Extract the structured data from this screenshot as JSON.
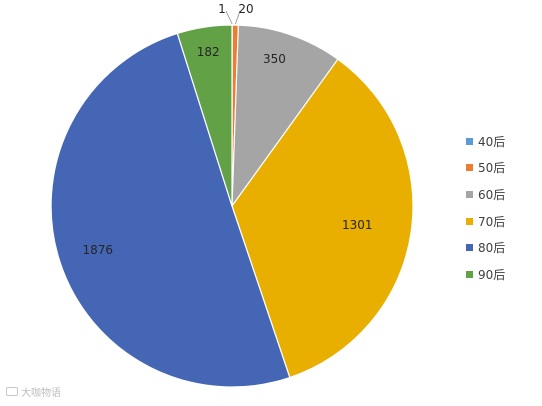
{
  "chart_data": {
    "type": "pie",
    "categories": [
      "40后",
      "50后",
      "60后",
      "70后",
      "80后",
      "90后"
    ],
    "values": [
      1,
      20,
      350,
      1301,
      1876,
      182
    ],
    "data_labels": [
      "1",
      "20",
      "350",
      "1301",
      "1876",
      "182"
    ],
    "colors": [
      "#5B9BD5",
      "#ED7D31",
      "#A5A5A5",
      "#E8AE00",
      "#4466B4",
      "#62A146"
    ],
    "legend_position": "right",
    "start": "12 o'clock",
    "direction": "clockwise"
  },
  "watermark": {
    "text": "大咖物语",
    "icon": "weibo-icon"
  }
}
